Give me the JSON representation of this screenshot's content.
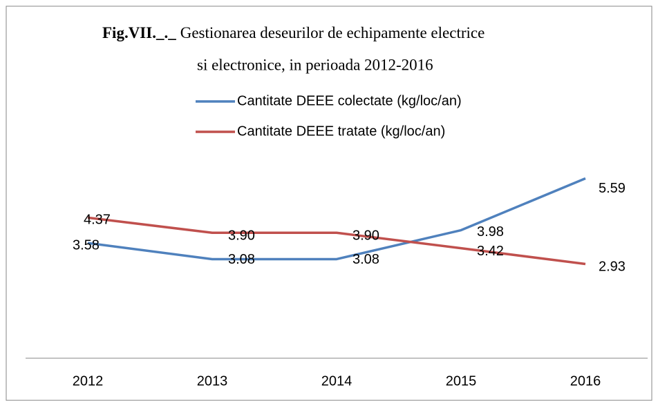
{
  "chart_data": {
    "type": "line",
    "title": [
      "Fig.VII._._",
      "Gestionarea deseurilor de echipamente electrice",
      "si electronice, in perioada 2012-2016"
    ],
    "categories": [
      "2012",
      "2013",
      "2014",
      "2015",
      "2016"
    ],
    "series": [
      {
        "name": "Cantitate DEEE colectate (kg/loc/an)",
        "color": "#4f81bd",
        "values": [
          3.58,
          3.08,
          3.08,
          3.98,
          5.59
        ],
        "value_labels": [
          "3.58",
          "3.08",
          "3.08",
          "3.98",
          "5.59"
        ]
      },
      {
        "name": "Cantitate DEEE tratate (kg/loc/an)",
        "color": "#c0504d",
        "values": [
          4.37,
          3.9,
          3.9,
          3.42,
          2.93
        ],
        "value_labels": [
          "4.37",
          "3.90",
          "3.90",
          "3.42",
          "2.93"
        ]
      }
    ],
    "ylim": [
      0,
      10
    ],
    "legend": "top"
  }
}
